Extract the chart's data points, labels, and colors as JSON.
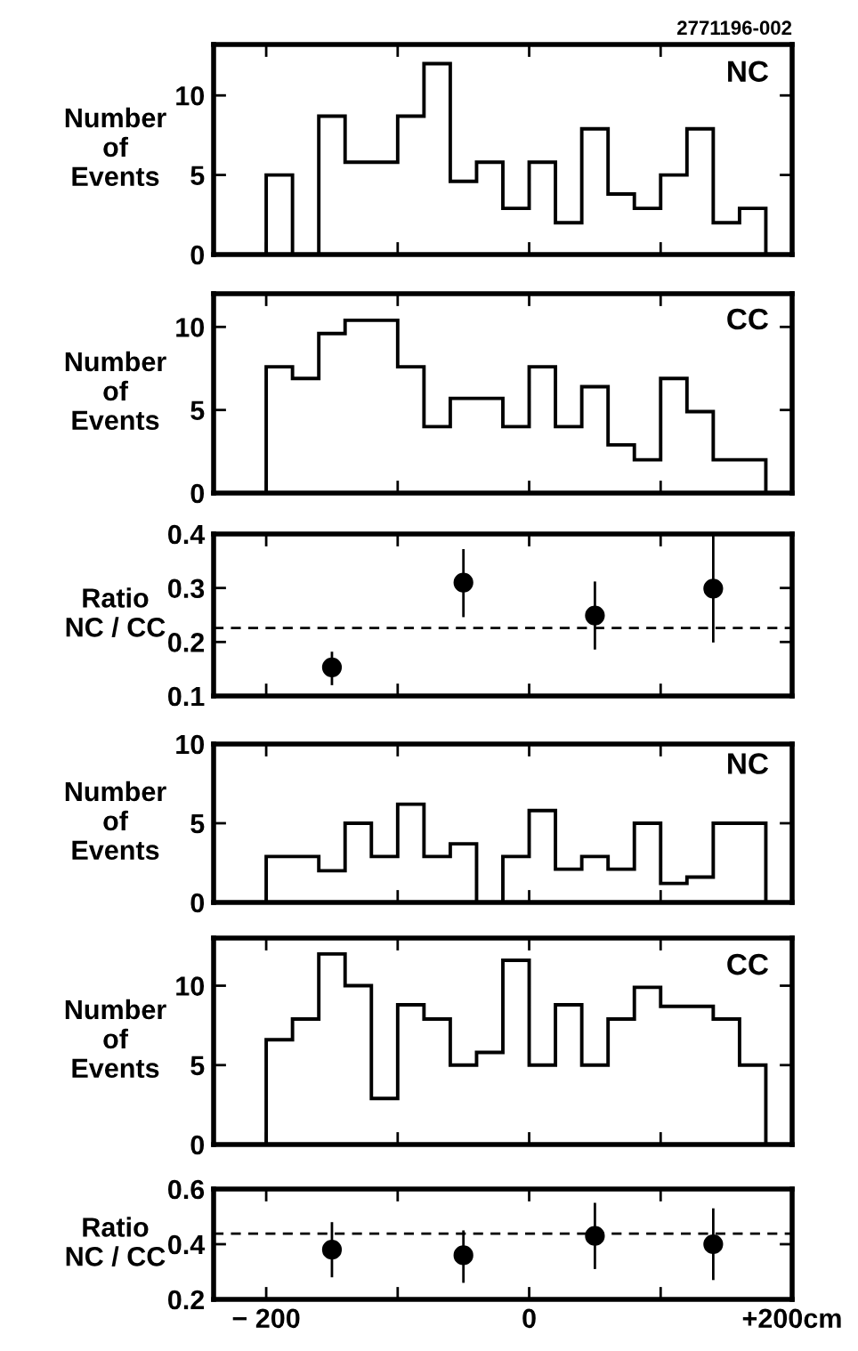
{
  "chart_data": [
    {
      "type": "histogram",
      "title": "2771196-002",
      "ylabel": "Number\nof\nEvents",
      "annotations": [
        "NC"
      ],
      "color": "#000000",
      "bins": [
        -200,
        -180,
        -160,
        -140,
        -100,
        -80,
        -60,
        -40,
        -20,
        0,
        20,
        40,
        60,
        80,
        100,
        120,
        140,
        160,
        180
      ],
      "values": [
        5.0,
        0,
        8.7,
        5.8,
        8.7,
        12.0,
        4.6,
        5.8,
        2.9,
        5.8,
        2.0,
        7.9,
        3.8,
        2.9,
        5.0,
        7.9,
        2.0,
        2.9
      ],
      "xlim": [
        -240,
        200
      ],
      "xticks": [
        -200,
        -100,
        0,
        100,
        200
      ],
      "ylim": [
        0,
        13.2
      ],
      "yticks": [
        0,
        5,
        10
      ],
      "tick_labels": "y",
      "grid": false,
      "legend": false
    },
    {
      "type": "histogram",
      "ylabel": "Number\nof\nEvents",
      "annotations": [
        "CC"
      ],
      "color": "#000000",
      "bins": [
        -200,
        -180,
        -160,
        -140,
        -100,
        -80,
        -60,
        -20,
        0,
        20,
        40,
        60,
        80,
        100,
        120,
        140,
        180
      ],
      "values": [
        7.6,
        6.9,
        9.6,
        10.4,
        7.6,
        4.0,
        5.7,
        4.0,
        7.6,
        4.0,
        6.4,
        2.9,
        2.0,
        6.9,
        4.9,
        2.0
      ],
      "xlim": [
        -240,
        200
      ],
      "xticks": [
        -200,
        -100,
        0,
        100,
        200
      ],
      "ylim": [
        0,
        12
      ],
      "yticks": [
        0,
        5,
        10
      ],
      "tick_labels": "y",
      "grid": false,
      "legend": false
    },
    {
      "type": "scatter",
      "ylabel": "Ratio\nNC / CC",
      "color": "#000000",
      "marker": "circle",
      "x": [
        -150,
        -50,
        50,
        140
      ],
      "values": [
        0.153,
        0.31,
        0.249,
        0.299
      ],
      "errors": [
        [
          0.12,
          0.182
        ],
        [
          0.246,
          0.372
        ],
        [
          0.186,
          0.312
        ],
        [
          0.199,
          0.398
        ]
      ],
      "ref_lines": [
        {
          "axis": "y",
          "value": 0.226,
          "line_style": "dashed",
          "color": "#000000"
        }
      ],
      "xlim": [
        -240,
        200
      ],
      "xticks": [
        -200,
        -100,
        0,
        100,
        200
      ],
      "ylim": [
        0.1,
        0.4
      ],
      "yticks": [
        0.1,
        0.2,
        0.3,
        0.4
      ],
      "tick_labels": "y",
      "grid": false,
      "legend": false
    },
    {
      "type": "histogram",
      "ylabel": "Number\nof\nEvents",
      "annotations": [
        "NC"
      ],
      "color": "#000000",
      "bins": [
        -200,
        -160,
        -140,
        -120,
        -100,
        -80,
        -60,
        -40,
        -20,
        0,
        20,
        40,
        60,
        80,
        100,
        120,
        140,
        180
      ],
      "values": [
        2.9,
        2.0,
        5.0,
        2.9,
        6.2,
        2.9,
        3.7,
        0,
        2.9,
        5.8,
        2.1,
        2.9,
        2.1,
        5.0,
        1.2,
        1.6,
        5.0
      ],
      "xlim": [
        -240,
        200
      ],
      "xticks": [
        -200,
        -100,
        0,
        100,
        200
      ],
      "ylim": [
        0,
        10
      ],
      "yticks": [
        0,
        5,
        10
      ],
      "tick_labels": "y",
      "grid": false,
      "legend": false
    },
    {
      "type": "histogram",
      "ylabel": "Number\nof\nEvents",
      "annotations": [
        "CC"
      ],
      "color": "#000000",
      "bins": [
        -200,
        -180,
        -160,
        -140,
        -120,
        -100,
        -80,
        -60,
        -40,
        -20,
        0,
        20,
        40,
        60,
        80,
        100,
        140,
        160,
        180
      ],
      "values": [
        6.6,
        7.9,
        12.0,
        10.0,
        2.9,
        8.8,
        7.9,
        5.0,
        5.8,
        11.6,
        5.0,
        8.8,
        5.0,
        7.9,
        9.9,
        8.7,
        7.9,
        5.0
      ],
      "xlim": [
        -240,
        200
      ],
      "xticks": [
        -200,
        -100,
        0,
        100,
        200
      ],
      "ylim": [
        0,
        13
      ],
      "yticks": [
        0,
        5,
        10
      ],
      "tick_labels": "y",
      "grid": false,
      "legend": false
    },
    {
      "type": "scatter",
      "ylabel": "Ratio\nNC / CC",
      "color": "#000000",
      "marker": "circle",
      "x": [
        -150,
        -50,
        50,
        140
      ],
      "values": [
        0.38,
        0.36,
        0.43,
        0.4
      ],
      "errors": [
        [
          0.28,
          0.48
        ],
        [
          0.26,
          0.45
        ],
        [
          0.31,
          0.55
        ],
        [
          0.27,
          0.53
        ]
      ],
      "ref_lines": [
        {
          "axis": "y",
          "value": 0.438,
          "line_style": "dashed",
          "color": "#000000"
        }
      ],
      "xlim": [
        -240,
        200
      ],
      "xticks": [
        {
          "value": -200,
          "label": "− 200"
        },
        {
          "value": -100,
          "label": null
        },
        {
          "value": 0,
          "label": "0"
        },
        {
          "value": 100,
          "label": null
        },
        {
          "value": 200,
          "label": "+200cm"
        }
      ],
      "ylim": [
        0.2,
        0.6
      ],
      "yticks": [
        0.2,
        0.4,
        0.6
      ],
      "grid": false,
      "legend": false
    }
  ]
}
